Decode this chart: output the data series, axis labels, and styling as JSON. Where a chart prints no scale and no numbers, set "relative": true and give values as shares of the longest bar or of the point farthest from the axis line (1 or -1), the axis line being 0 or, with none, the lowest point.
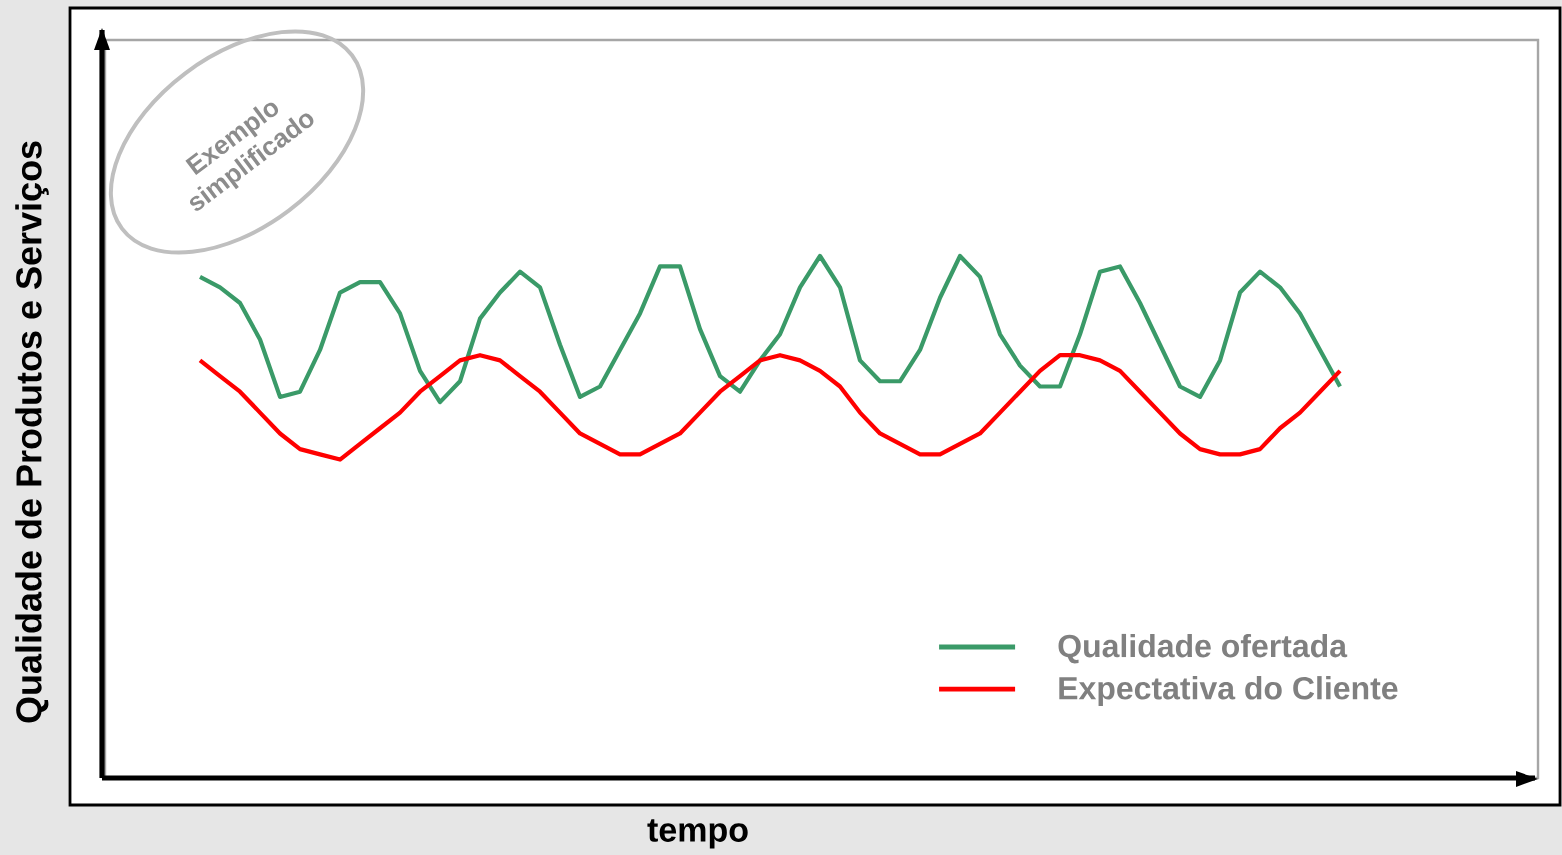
{
  "chart_data": {
    "type": "line",
    "relative": true,
    "xlabel": "tempo",
    "ylabel": "Qualidade de Produtos e Serviços",
    "annotations": [
      "Exemplo simplificado"
    ],
    "legend": "bottom right",
    "line_style": "solid",
    "categories": [
      null,
      null,
      null,
      null,
      null,
      null,
      null,
      null,
      null,
      null,
      null,
      null,
      null,
      null,
      null,
      null,
      null,
      null,
      null,
      null,
      null,
      null,
      null,
      null,
      null,
      null,
      null,
      null,
      null,
      null,
      null,
      null,
      null,
      null,
      null,
      null,
      null,
      null,
      null,
      null,
      null,
      null,
      null,
      null,
      null,
      null,
      null,
      null,
      null,
      null,
      null,
      null,
      null,
      null,
      null,
      null,
      null,
      null
    ],
    "series": [
      {
        "name": "Qualidade ofertada",
        "color": "#3a9a68",
        "values": [
          0.96,
          0.94,
          0.91,
          0.84,
          0.73,
          0.74,
          0.82,
          0.93,
          0.95,
          0.95,
          0.89,
          0.78,
          0.72,
          0.76,
          0.88,
          0.93,
          0.97,
          0.94,
          0.83,
          0.73,
          0.75,
          0.82,
          0.89,
          0.98,
          0.98,
          0.86,
          0.77,
          0.74,
          0.8,
          0.85,
          0.94,
          1.0,
          0.94,
          0.8,
          0.76,
          0.76,
          0.82,
          0.92,
          1.0,
          0.96,
          0.85,
          0.79,
          0.75,
          0.75,
          0.85,
          0.97,
          0.98,
          0.91,
          0.83,
          0.75,
          0.73,
          0.8,
          0.93,
          0.97,
          0.94,
          0.89,
          0.82,
          0.75
        ]
      },
      {
        "name": "Expectativa do Cliente",
        "color": "#ff0000",
        "values": [
          0.8,
          0.77,
          0.74,
          0.7,
          0.66,
          0.63,
          0.62,
          0.61,
          0.64,
          0.67,
          0.7,
          0.74,
          0.77,
          0.8,
          0.81,
          0.8,
          0.77,
          0.74,
          0.7,
          0.66,
          0.64,
          0.62,
          0.62,
          0.64,
          0.66,
          0.7,
          0.74,
          0.77,
          0.8,
          0.81,
          0.8,
          0.78,
          0.75,
          0.7,
          0.66,
          0.64,
          0.62,
          0.62,
          0.64,
          0.66,
          0.7,
          0.74,
          0.78,
          0.81,
          0.81,
          0.8,
          0.78,
          0.74,
          0.7,
          0.66,
          0.63,
          0.62,
          0.62,
          0.63,
          0.67,
          0.7,
          0.74,
          0.78
        ]
      }
    ]
  }
}
